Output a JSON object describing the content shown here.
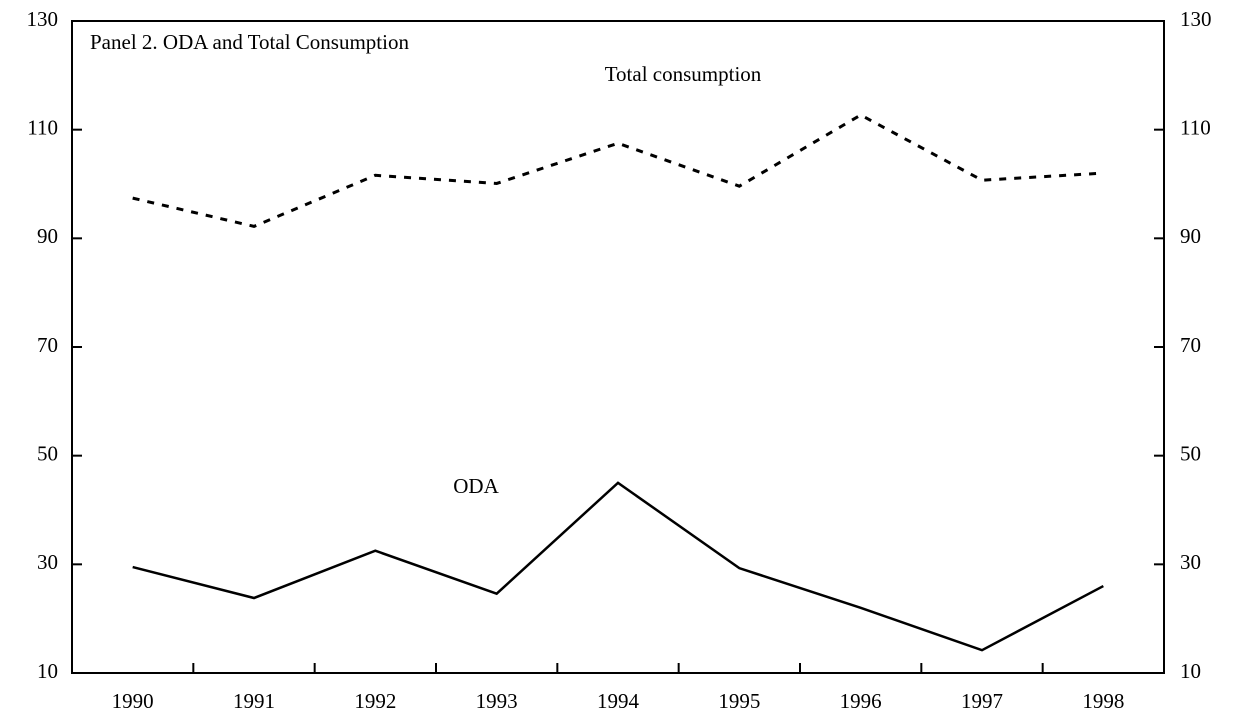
{
  "chart_data": {
    "type": "line",
    "title": "Panel 2. ODA and Total Consumption",
    "categories": [
      "1990",
      "1991",
      "1992",
      "1993",
      "1994",
      "1995",
      "1996",
      "1997",
      "1998"
    ],
    "series": [
      {
        "name": "Total consumption",
        "color": "#000000",
        "dash": true,
        "values": [
          97.4,
          92.2,
          101.6,
          100.1,
          107.5,
          99.6,
          112.7,
          100.7,
          102
        ]
      },
      {
        "name": "ODA",
        "color": "#000000",
        "dash": false,
        "values": [
          29.5,
          23.8,
          32.5,
          24.6,
          45,
          29.3,
          22,
          14.2,
          26
        ]
      }
    ],
    "ylim": [
      10,
      130
    ],
    "yticks": [
      10,
      30,
      50,
      70,
      90,
      110,
      130
    ],
    "y2lim": [
      10,
      130
    ],
    "y2ticks": [
      10,
      30,
      50,
      70,
      90,
      110,
      130
    ],
    "grid": false
  }
}
